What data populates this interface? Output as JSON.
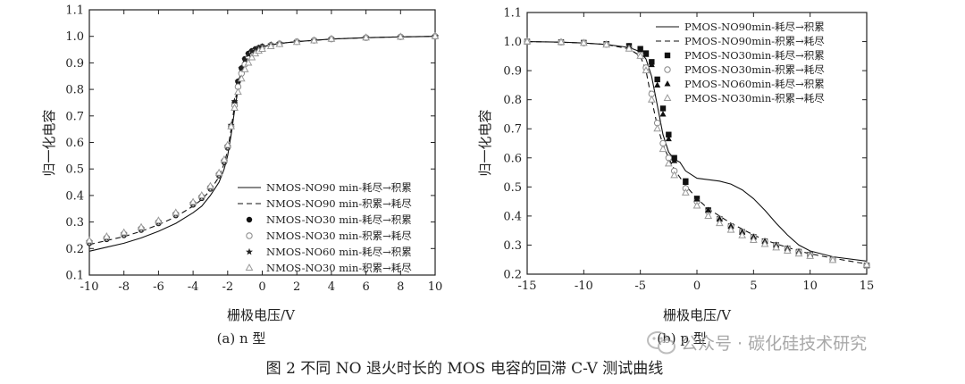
{
  "figure_caption": "图 2   不同 NO 退火时长的 MOS 电容的回滞 C-V 测试曲线",
  "watermark": "公众号 · 碳化硅技术研究",
  "chart_data": [
    {
      "id": "a",
      "type": "line",
      "subcaption": "(a) n 型",
      "xlabel": "栅极电压/V",
      "ylabel": "归一化电容",
      "xlim": [
        -10,
        10
      ],
      "ylim": [
        0.1,
        1.1
      ],
      "xticks": [
        -10,
        -8,
        -6,
        -4,
        -2,
        0,
        2,
        4,
        6,
        8,
        10
      ],
      "yticks": [
        0.1,
        0.2,
        0.3,
        0.4,
        0.5,
        0.6,
        0.7,
        0.8,
        0.9,
        1.0,
        1.1
      ],
      "legend_position": "lower-right",
      "series": [
        {
          "name": "NMOS-NO90 min-耗尽→积累",
          "style": "solid",
          "x": [
            -10,
            -9,
            -8,
            -7,
            -6,
            -5,
            -4,
            -3.5,
            -3,
            -2.5,
            -2.2,
            -2,
            -1.8,
            -1.6,
            -1.4,
            -1.2,
            -1,
            -0.8,
            -0.6,
            -0.4,
            -0.2,
            0,
            0.5,
            1,
            2,
            3,
            4,
            6,
            8,
            10
          ],
          "y": [
            0.19,
            0.205,
            0.22,
            0.24,
            0.265,
            0.295,
            0.335,
            0.36,
            0.4,
            0.45,
            0.5,
            0.55,
            0.63,
            0.72,
            0.8,
            0.86,
            0.9,
            0.925,
            0.94,
            0.95,
            0.955,
            0.96,
            0.968,
            0.973,
            0.98,
            0.985,
            0.99,
            0.995,
            0.998,
            1.0
          ]
        },
        {
          "name": "NMOS-NO90 min-积累→耗尽",
          "style": "dashed",
          "x": [
            -10,
            -9,
            -8,
            -7,
            -6,
            -5,
            -4,
            -3.5,
            -3,
            -2.5,
            -2.2,
            -2,
            -1.8,
            -1.6,
            -1.4,
            -1.2,
            -1,
            -0.8,
            -0.6,
            -0.4,
            -0.2,
            0,
            0.5,
            1,
            2,
            3,
            4,
            6,
            8,
            10
          ],
          "y": [
            0.215,
            0.23,
            0.245,
            0.265,
            0.29,
            0.32,
            0.36,
            0.385,
            0.42,
            0.47,
            0.52,
            0.57,
            0.65,
            0.74,
            0.82,
            0.875,
            0.91,
            0.93,
            0.942,
            0.95,
            0.955,
            0.96,
            0.968,
            0.973,
            0.98,
            0.985,
            0.99,
            0.995,
            0.998,
            1.0
          ]
        },
        {
          "name": "NMOS-NO30 min-耗尽→积累",
          "style": "marker",
          "marker": "circle-filled",
          "x": [
            -10,
            -9,
            -8,
            -7,
            -6,
            -5,
            -4,
            -3.5,
            -3,
            -2.5,
            -2.2,
            -2,
            -1.8,
            -1.6,
            -1.4,
            -1.2,
            -1,
            -0.8,
            -0.6,
            -0.4,
            -0.2,
            0,
            0.5,
            1,
            2,
            3,
            4,
            6,
            8,
            10
          ],
          "y": [
            0.22,
            0.235,
            0.25,
            0.27,
            0.295,
            0.325,
            0.365,
            0.39,
            0.425,
            0.475,
            0.525,
            0.58,
            0.66,
            0.75,
            0.83,
            0.88,
            0.915,
            0.935,
            0.945,
            0.952,
            0.957,
            0.962,
            0.968,
            0.973,
            0.98,
            0.985,
            0.99,
            0.995,
            0.998,
            1.0
          ]
        },
        {
          "name": "NMOS-NO30 min-积累→耗尽",
          "style": "marker",
          "marker": "circle-open",
          "x": [
            -10,
            -9,
            -8,
            -7,
            -6,
            -5,
            -4,
            -3.5,
            -3,
            -2.5,
            -2.2,
            -2,
            -1.8,
            -1.6,
            -1.4,
            -1.2,
            -1,
            -0.8,
            -0.6,
            -0.4,
            -0.2,
            0,
            0.5,
            1,
            2,
            3,
            4,
            6,
            8,
            10
          ],
          "y": [
            0.225,
            0.24,
            0.255,
            0.275,
            0.3,
            0.33,
            0.37,
            0.395,
            0.43,
            0.48,
            0.53,
            0.585,
            0.66,
            0.74,
            0.81,
            0.86,
            0.895,
            0.92,
            0.935,
            0.945,
            0.952,
            0.958,
            0.966,
            0.972,
            0.98,
            0.985,
            0.99,
            0.995,
            0.998,
            1.0
          ]
        },
        {
          "name": "NMOS-NO60 min-耗尽→积累",
          "style": "marker",
          "marker": "star",
          "x": [
            -10,
            -9,
            -8,
            -7,
            -6,
            -5,
            -4,
            -3.5,
            -3,
            -2.5,
            -2.2,
            -2,
            -1.8,
            -1.6,
            -1.4,
            -1.2,
            -1,
            -0.8,
            -0.6,
            -0.4,
            -0.2,
            0,
            0.5,
            1,
            2,
            3,
            4,
            6,
            8,
            10
          ],
          "y": [
            0.225,
            0.24,
            0.255,
            0.275,
            0.3,
            0.33,
            0.37,
            0.395,
            0.43,
            0.48,
            0.53,
            0.585,
            0.665,
            0.755,
            0.83,
            0.88,
            0.912,
            0.932,
            0.944,
            0.951,
            0.956,
            0.961,
            0.968,
            0.973,
            0.98,
            0.985,
            0.99,
            0.995,
            0.998,
            1.0
          ]
        },
        {
          "name": "NMOS-NO30 min-积累→耗尽",
          "style": "marker",
          "marker": "triangle-open",
          "x": [
            -10,
            -9,
            -8,
            -7,
            -6,
            -5,
            -4,
            -3.5,
            -3,
            -2.5,
            -2.2,
            -2,
            -1.8,
            -1.6,
            -1.4,
            -1.2,
            -1,
            -0.8,
            -0.6,
            -0.4,
            -0.2,
            0,
            0.5,
            1,
            2,
            3,
            4,
            6,
            8,
            10
          ],
          "y": [
            0.23,
            0.245,
            0.26,
            0.28,
            0.305,
            0.335,
            0.375,
            0.4,
            0.435,
            0.485,
            0.535,
            0.59,
            0.66,
            0.73,
            0.79,
            0.84,
            0.875,
            0.9,
            0.92,
            0.935,
            0.945,
            0.952,
            0.962,
            0.97,
            0.978,
            0.984,
            0.99,
            0.995,
            0.998,
            1.0
          ]
        }
      ]
    },
    {
      "id": "b",
      "type": "line",
      "subcaption": "(b) p 型",
      "xlabel": "栅极电压/V",
      "ylabel": "归一化电容",
      "xlim": [
        -15,
        15
      ],
      "ylim": [
        0.2,
        1.1
      ],
      "xticks": [
        -15,
        -10,
        -5,
        0,
        5,
        10,
        15
      ],
      "yticks": [
        0.2,
        0.3,
        0.4,
        0.5,
        0.6,
        0.7,
        0.8,
        0.9,
        1.0,
        1.1
      ],
      "legend_position": "top-right",
      "series": [
        {
          "name": "PMOS-NO90min-耗尽→积累",
          "style": "solid",
          "x": [
            -15,
            -12,
            -10,
            -8,
            -6,
            -5,
            -4.5,
            -4,
            -3.5,
            -3,
            -2.5,
            -2,
            -1.5,
            -1,
            0,
            1,
            2,
            3,
            4,
            5,
            6,
            7,
            8,
            9,
            10,
            12,
            15
          ],
          "y": [
            1.0,
            0.998,
            0.995,
            0.99,
            0.98,
            0.965,
            0.94,
            0.88,
            0.78,
            0.68,
            0.62,
            0.595,
            0.585,
            0.555,
            0.53,
            0.525,
            0.52,
            0.51,
            0.49,
            0.46,
            0.42,
            0.375,
            0.335,
            0.3,
            0.28,
            0.26,
            0.245
          ]
        },
        {
          "name": "PMOS-NO90min-积累→耗尽",
          "style": "dashed",
          "x": [
            -15,
            -12,
            -10,
            -8,
            -6,
            -5,
            -4.5,
            -4,
            -3.5,
            -3,
            -2.5,
            -2,
            -1,
            0,
            1,
            2,
            3,
            4,
            5,
            6,
            7,
            8,
            9,
            10,
            12,
            15
          ],
          "y": [
            1.0,
            0.998,
            0.995,
            0.99,
            0.975,
            0.95,
            0.9,
            0.8,
            0.71,
            0.645,
            0.6,
            0.56,
            0.505,
            0.46,
            0.425,
            0.4,
            0.375,
            0.355,
            0.335,
            0.318,
            0.304,
            0.292,
            0.28,
            0.27,
            0.255,
            0.235
          ]
        },
        {
          "name": "PMOS-NO30min-耗尽→积累",
          "style": "marker",
          "marker": "square-filled",
          "x": [
            -15,
            -12,
            -10,
            -8,
            -6,
            -5,
            -4.5,
            -4,
            -3.5,
            -3,
            -2.5,
            -2,
            -1,
            0,
            1,
            2,
            3,
            4,
            5,
            6,
            7,
            8,
            9,
            10,
            12,
            15
          ],
          "y": [
            1.0,
            0.998,
            0.996,
            0.992,
            0.985,
            0.975,
            0.96,
            0.93,
            0.87,
            0.77,
            0.68,
            0.6,
            0.52,
            0.46,
            0.42,
            0.39,
            0.365,
            0.345,
            0.328,
            0.313,
            0.3,
            0.288,
            0.277,
            0.267,
            0.25,
            0.23
          ]
        },
        {
          "name": "PMOS-NO30min-积累→耗尽",
          "style": "marker",
          "marker": "circle-open",
          "x": [
            -15,
            -12,
            -10,
            -8,
            -6,
            -5,
            -4.5,
            -4,
            -3.5,
            -3,
            -2.5,
            -2,
            -1,
            0,
            1,
            2,
            3,
            4,
            5,
            6,
            7,
            8,
            9,
            10,
            12,
            15
          ],
          "y": [
            1.0,
            0.998,
            0.995,
            0.99,
            0.978,
            0.955,
            0.91,
            0.82,
            0.72,
            0.65,
            0.6,
            0.555,
            0.495,
            0.45,
            0.415,
            0.39,
            0.365,
            0.345,
            0.328,
            0.313,
            0.3,
            0.288,
            0.277,
            0.267,
            0.25,
            0.23
          ]
        },
        {
          "name": "PMOS-NO60min-耗尽→积累",
          "style": "marker",
          "marker": "triangle-filled",
          "x": [
            -15,
            -12,
            -10,
            -8,
            -6,
            -5,
            -4.5,
            -4,
            -3.5,
            -3,
            -2.5,
            -2,
            -1,
            0,
            1,
            2,
            3,
            4,
            5,
            6,
            7,
            8,
            9,
            10,
            12,
            15
          ],
          "y": [
            1.0,
            0.998,
            0.996,
            0.992,
            0.984,
            0.972,
            0.955,
            0.92,
            0.85,
            0.75,
            0.665,
            0.59,
            0.515,
            0.458,
            0.42,
            0.39,
            0.365,
            0.345,
            0.328,
            0.313,
            0.3,
            0.288,
            0.277,
            0.267,
            0.25,
            0.23
          ]
        },
        {
          "name": "PMOS-NO30min-积累→耗尽",
          "style": "marker",
          "marker": "triangle-open",
          "x": [
            -15,
            -12,
            -10,
            -8,
            -6,
            -5,
            -4.5,
            -4,
            -3.5,
            -3,
            -2.5,
            -2,
            -1,
            0,
            1,
            2,
            3,
            4,
            5,
            6,
            7,
            8,
            9,
            10,
            12,
            15
          ],
          "y": [
            1.0,
            0.998,
            0.995,
            0.989,
            0.975,
            0.95,
            0.9,
            0.8,
            0.7,
            0.63,
            0.58,
            0.54,
            0.48,
            0.435,
            0.4,
            0.375,
            0.352,
            0.333,
            0.317,
            0.303,
            0.291,
            0.28,
            0.27,
            0.262,
            0.248,
            0.232
          ]
        }
      ]
    }
  ]
}
